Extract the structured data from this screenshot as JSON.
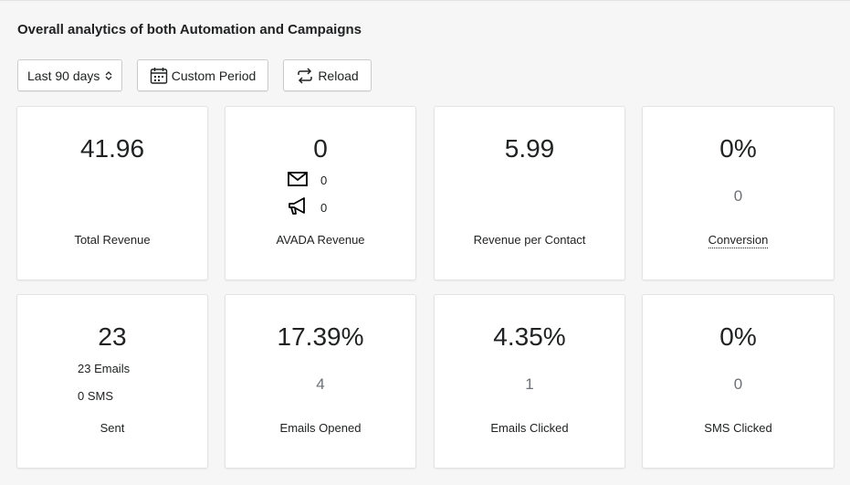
{
  "header": {
    "title": "Overall analytics of both Automation and Campaigns"
  },
  "toolbar": {
    "period_select": "Last 90 days",
    "custom_period": "Custom Period",
    "reload": "Reload"
  },
  "cards": {
    "total_revenue": {
      "value": "41.96",
      "label": "Total Revenue"
    },
    "avada_revenue": {
      "value": "0",
      "email_value": "0",
      "campaign_value": "0",
      "label": "AVADA Revenue"
    },
    "revenue_per_contact": {
      "value": "5.99",
      "label": "Revenue per Contact"
    },
    "conversion": {
      "value": "0%",
      "sub": "0",
      "label": "Conversion"
    },
    "sent": {
      "value": "23",
      "emails": "23 Emails",
      "sms": "0 SMS",
      "label": "Sent"
    },
    "emails_opened": {
      "value": "17.39%",
      "sub": "4",
      "label": "Emails Opened"
    },
    "emails_clicked": {
      "value": "4.35%",
      "sub": "1",
      "label": "Emails Clicked"
    },
    "sms_clicked": {
      "value": "0%",
      "sub": "0",
      "label": "SMS Clicked"
    }
  }
}
